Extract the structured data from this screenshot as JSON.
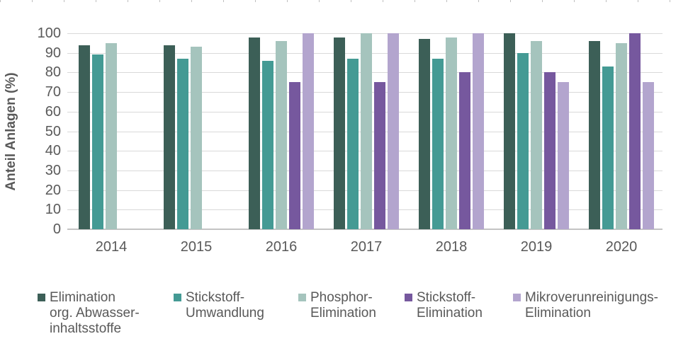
{
  "chart_data": {
    "type": "bar",
    "title": "",
    "xlabel": "",
    "ylabel": "Anteil Anlagen (%)",
    "ylim": [
      0,
      100
    ],
    "yticks": [
      0,
      10,
      20,
      30,
      40,
      50,
      60,
      70,
      80,
      90,
      100
    ],
    "grid": "horizontal",
    "legend_position": "bottom",
    "categories": [
      "2014",
      "2015",
      "2016",
      "2017",
      "2018",
      "2019",
      "2020"
    ],
    "series": [
      {
        "name": "Elimination org. Abwasser-inhaltsstoffe",
        "legend_lines": [
          "Elimination",
          "org. Abwasser-",
          "inhaltsstoffe"
        ],
        "color": "#3c5f57",
        "values": [
          94,
          94,
          98,
          98,
          97,
          100,
          96
        ]
      },
      {
        "name": "Stickstoff-Umwandlung",
        "legend_lines": [
          "Stickstoff-",
          "Umwandlung"
        ],
        "color": "#449a94",
        "values": [
          89,
          87,
          86,
          87,
          87,
          90,
          83
        ]
      },
      {
        "name": "Phosphor-Elimination",
        "legend_lines": [
          "Phosphor-",
          "Elimination"
        ],
        "color": "#a5c4bd",
        "values": [
          95,
          93,
          96,
          100,
          98,
          96,
          95
        ]
      },
      {
        "name": "Stickstoff-Elimination",
        "legend_lines": [
          "Stickstoff-",
          "Elimination"
        ],
        "color": "#76589e",
        "values": [
          null,
          null,
          75,
          75,
          80,
          80,
          100
        ]
      },
      {
        "name": "Mikroverunreinigungs-Elimination",
        "legend_lines": [
          "Mikroverunreinigungs-",
          "Elimination"
        ],
        "color": "#b3a5ce",
        "values": [
          null,
          null,
          100,
          100,
          100,
          75,
          75
        ]
      }
    ]
  },
  "colors": {
    "gridline": "#d9d9d9",
    "axis_line": "#c3c3c3",
    "text": "#595959",
    "ruler_tick": "#bfbfbf",
    "background": "#ffffff"
  }
}
